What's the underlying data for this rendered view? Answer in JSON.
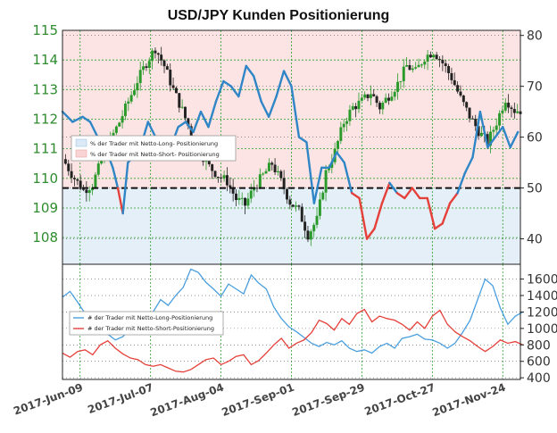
{
  "title": "USD/JPY Kunden Positionierung",
  "colors": {
    "long": "#2f86c6",
    "short": "#e5403a",
    "candle_up": "#2a9a2a",
    "candle_down": "#222222",
    "grid": "#2aa02a",
    "left_axis_text": "#2e8b2e",
    "short_zone": "#fde4e4",
    "long_zone": "#e5eff8"
  },
  "chart_data": [
    {
      "type": "line",
      "title": "USD/JPY Kunden Positionierung",
      "subtype": "candlestick price with sentiment overlay",
      "x_labels": [
        "2017-Jun-09",
        "2017-Jul-07",
        "2017-Aug-04",
        "2017-Sep-01",
        "2017-Sep-29",
        "2017-Oct-27",
        "2017-Nov-24"
      ],
      "left_axis": {
        "label": "",
        "ticks": [
          108,
          109,
          110,
          111,
          112,
          113,
          114,
          115
        ],
        "ylim": [
          107.1,
          115
        ]
      },
      "right_axis": {
        "label": "",
        "ticks": [
          40,
          50,
          60,
          70,
          80
        ],
        "ylim": [
          35,
          81
        ]
      },
      "reference_line": {
        "axis": "right",
        "value": 50,
        "style": "dashed"
      },
      "legend": {
        "placement": "left",
        "entries": [
          "% der Trader mit Netto-Long- Positionierung",
          "% der Trader mit Netto-Short- Positionierung"
        ]
      },
      "price_candles": {
        "start": "2017-06-09",
        "end": "2017-12-08",
        "closes_approx": [
          110.5,
          110.0,
          109.6,
          109.8,
          110.6,
          111.3,
          111.9,
          112.6,
          113.3,
          113.9,
          114.4,
          113.8,
          113.0,
          112.3,
          111.5,
          110.9,
          110.4,
          110.1,
          109.9,
          109.3,
          109.1,
          109.7,
          110.1,
          110.5,
          109.9,
          109.2,
          108.9,
          108.1,
          108.6,
          110.2,
          110.9,
          111.9,
          112.4,
          112.6,
          112.9,
          112.4,
          112.8,
          113.2,
          113.8,
          113.6,
          114.1,
          114.3,
          113.9,
          113.4,
          112.7,
          112.1,
          111.6,
          111.2,
          111.9,
          112.7,
          112.3
        ]
      },
      "series": [
        {
          "name": "% der Trader mit Netto-Long- Positionierung",
          "axis": "right",
          "x_days": [
            0,
            4,
            8,
            11,
            14,
            17,
            20,
            22,
            24,
            26,
            28,
            31,
            34,
            37,
            40,
            43,
            46,
            49,
            52,
            55,
            58,
            61,
            64,
            67,
            70,
            73,
            76,
            79,
            82,
            85,
            88,
            91,
            94,
            97,
            100,
            103,
            106,
            109,
            112,
            115,
            118,
            121,
            124,
            127,
            130,
            133,
            136,
            139,
            142,
            145,
            148,
            151,
            154,
            157,
            160,
            163,
            166,
            169,
            172,
            175,
            178,
            181
          ],
          "values": [
            65,
            63,
            64,
            63,
            60,
            58,
            54,
            50,
            45,
            55,
            56,
            58,
            63,
            60,
            57,
            58,
            62,
            63,
            61,
            65,
            62,
            67,
            71,
            70,
            68,
            74,
            72,
            67,
            64,
            68,
            73,
            70,
            60,
            59,
            47,
            54,
            54,
            57,
            55,
            49,
            48,
            40,
            42,
            47,
            51,
            49,
            48,
            50,
            48,
            48,
            42,
            43,
            47,
            49,
            53,
            56,
            65,
            58,
            60,
            62,
            58,
            61
          ]
        },
        {
          "name": "% der Trader mit Netto-Short- Positionierung",
          "axis": "right",
          "note": "net-short portion of the sentiment line (below 50)"
        }
      ]
    },
    {
      "type": "line",
      "title": "",
      "x_labels": [
        "2017-Jun-09",
        "2017-Jul-07",
        "2017-Aug-04",
        "2017-Sep-01",
        "2017-Sep-29",
        "2017-Oct-27",
        "2017-Nov-24"
      ],
      "right_axis": {
        "label": "",
        "ticks": [
          400,
          600,
          800,
          1000,
          1200,
          1400,
          1600
        ],
        "ylim": [
          380,
          1780
        ]
      },
      "legend": {
        "placement": "left",
        "entries": [
          "# der Trader mit Netto-Long-Positionierung",
          "# der Trader mit Netto-Short-Positionierung"
        ]
      },
      "series": [
        {
          "name": "# der Trader mit Netto-Long-Positionierung",
          "x_days": [
            0,
            3,
            6,
            9,
            12,
            15,
            18,
            21,
            24,
            27,
            30,
            33,
            36,
            39,
            42,
            45,
            48,
            51,
            54,
            57,
            60,
            63,
            66,
            69,
            72,
            75,
            78,
            81,
            84,
            87,
            90,
            93,
            96,
            99,
            102,
            105,
            108,
            111,
            114,
            117,
            120,
            123,
            126,
            129,
            132,
            135,
            138,
            141,
            144,
            147,
            150,
            153,
            156,
            159,
            162,
            165,
            168,
            171,
            174,
            177,
            180,
            183
          ],
          "values": [
            1380,
            1450,
            1320,
            1180,
            1050,
            980,
            930,
            860,
            900,
            1000,
            1080,
            1120,
            1200,
            1350,
            1280,
            1400,
            1500,
            1720,
            1680,
            1560,
            1480,
            1390,
            1540,
            1480,
            1420,
            1650,
            1550,
            1480,
            1260,
            1120,
            1020,
            960,
            890,
            820,
            780,
            830,
            800,
            850,
            760,
            720,
            740,
            700,
            780,
            820,
            760,
            880,
            900,
            930,
            870,
            860,
            820,
            760,
            820,
            950,
            1100,
            1350,
            1600,
            1520,
            1250,
            1050,
            1150,
            1200
          ]
        },
        {
          "name": "# der Trader mit Netto-Short-Positionierung",
          "x_days": [
            0,
            3,
            6,
            9,
            12,
            15,
            18,
            21,
            24,
            27,
            30,
            33,
            36,
            39,
            42,
            45,
            48,
            51,
            54,
            57,
            60,
            63,
            66,
            69,
            72,
            75,
            78,
            81,
            84,
            87,
            90,
            93,
            96,
            99,
            102,
            105,
            108,
            111,
            114,
            117,
            120,
            123,
            126,
            129,
            132,
            135,
            138,
            141,
            144,
            147,
            150,
            153,
            156,
            159,
            162,
            165,
            168,
            171,
            174,
            177,
            180,
            183
          ],
          "values": [
            700,
            650,
            720,
            740,
            680,
            800,
            850,
            760,
            690,
            640,
            620,
            560,
            540,
            560,
            520,
            480,
            470,
            500,
            560,
            620,
            640,
            560,
            600,
            660,
            680,
            560,
            610,
            700,
            800,
            880,
            760,
            820,
            860,
            950,
            1100,
            1060,
            980,
            1120,
            1050,
            1180,
            1230,
            1080,
            1150,
            1120,
            1100,
            1050,
            980,
            1080,
            1000,
            1150,
            1220,
            1050,
            960,
            900,
            850,
            780,
            720,
            780,
            860,
            820,
            840,
            800
          ]
        }
      ]
    }
  ]
}
